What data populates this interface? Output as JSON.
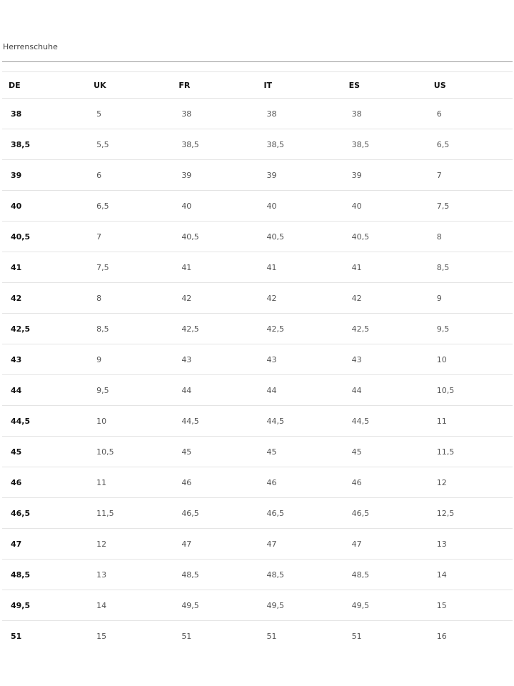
{
  "title": "Herrenschuhe",
  "headers": [
    "DE",
    "UK",
    "FR",
    "IT",
    "ES",
    "US"
  ],
  "rows": [
    [
      "38",
      "5",
      "38",
      "38",
      "38",
      "6"
    ],
    [
      "38,5",
      "5,5",
      "38,5",
      "38,5",
      "38,5",
      "6,5"
    ],
    [
      "39",
      "6",
      "39",
      "39",
      "39",
      "7"
    ],
    [
      "40",
      "6,5",
      "40",
      "40",
      "40",
      "7,5"
    ],
    [
      "40,5",
      "7",
      "40,5",
      "40,5",
      "40,5",
      "8"
    ],
    [
      "41",
      "7,5",
      "41",
      "41",
      "41",
      "8,5"
    ],
    [
      "42",
      "8",
      "42",
      "42",
      "42",
      "9"
    ],
    [
      "42,5",
      "8,5",
      "42,5",
      "42,5",
      "42,5",
      "9,5"
    ],
    [
      "43",
      "9",
      "43",
      "43",
      "43",
      "10"
    ],
    [
      "44",
      "9,5",
      "44",
      "44",
      "44",
      "10,5"
    ],
    [
      "44,5",
      "10",
      "44,5",
      "44,5",
      "44,5",
      "11"
    ],
    [
      "45",
      "10,5",
      "45",
      "45",
      "45",
      "11,5"
    ],
    [
      "46",
      "11",
      "46",
      "46",
      "46",
      "12"
    ],
    [
      "46,5",
      "11,5",
      "46,5",
      "46,5",
      "46,5",
      "12,5"
    ],
    [
      "47",
      "12",
      "47",
      "47",
      "47",
      "13"
    ],
    [
      "48,5",
      "13",
      "48,5",
      "48,5",
      "48,5",
      "14"
    ],
    [
      "49,5",
      "14",
      "49,5",
      "49,5",
      "49,5",
      "15"
    ],
    [
      "51",
      "15",
      "51",
      "51",
      "51",
      "16"
    ]
  ]
}
